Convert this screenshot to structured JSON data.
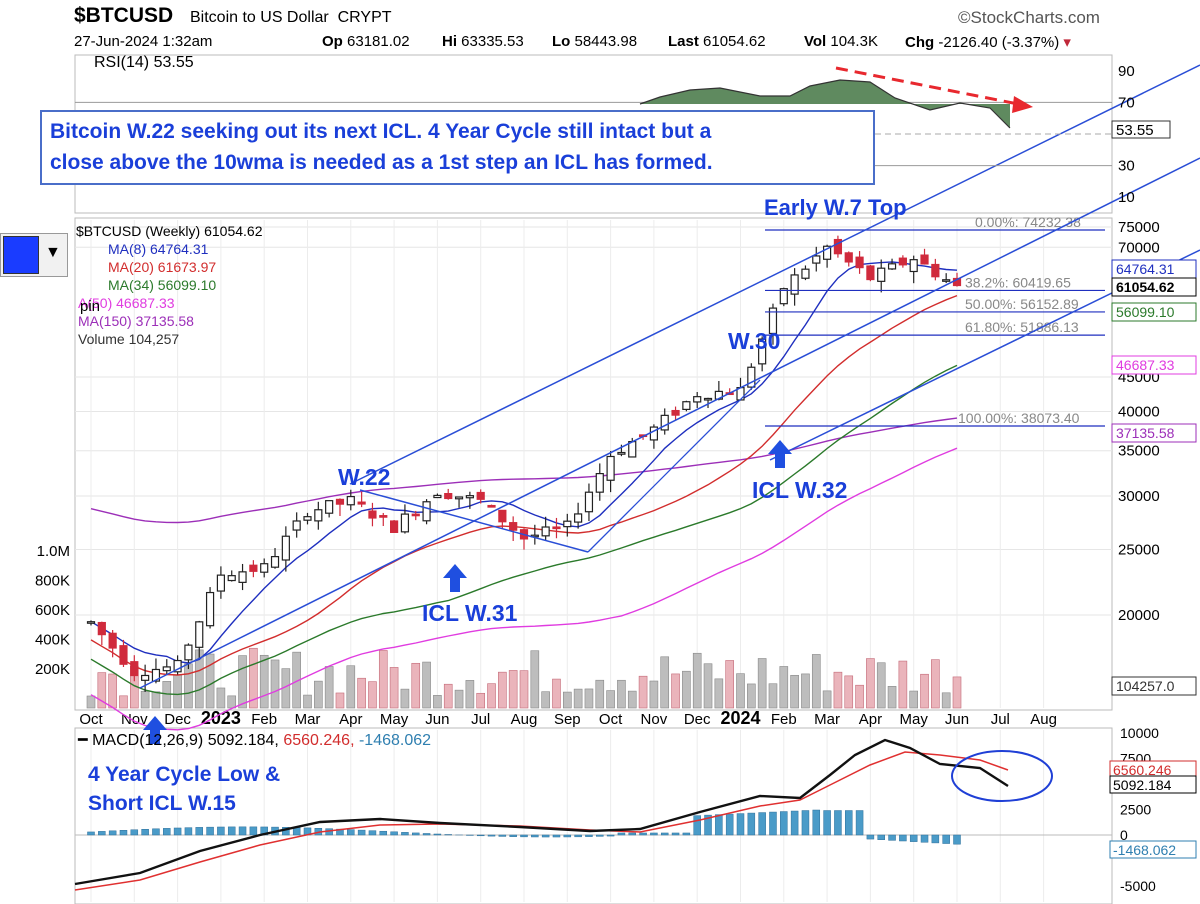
{
  "header": {
    "symbol": "$BTCUSD",
    "name": "Bitcoin to US Dollar",
    "exchange": "CRYPT",
    "brand": "©StockCharts.com",
    "datetime": "27-Jun-2024 1:32am",
    "open_label": "Op",
    "open": "63181.02",
    "high_label": "Hi",
    "high": "63335.53",
    "low_label": "Lo",
    "low": "58443.98",
    "last_label": "Last",
    "last": "61054.62",
    "vol_label": "Vol",
    "vol": "104.3K",
    "chg_label": "Chg",
    "chg": "-2126.40 (-3.37%)"
  },
  "note_box": {
    "line1": "Bitcoin W.22 seeking out its next ICL. 4 Year Cycle still intact but a",
    "line2": "close above the 10wma is needed as a 1st step an ICL has formed."
  },
  "rsi_panel": {
    "label": "RSI(14) 53.55",
    "ticks": [
      "90",
      "70",
      "30",
      "10"
    ],
    "value_tag": "53.55"
  },
  "price_panel": {
    "title": "$BTCUSD (Weekly) 61054.62",
    "legend": [
      {
        "label": "MA(8) 64764.31",
        "color": "#1f2fbf"
      },
      {
        "label": "MA(20) 61673.97",
        "color": "#d22d2d"
      },
      {
        "label": "MA(34) 56099.10",
        "color": "#2b7a2b"
      },
      {
        "label": "A(50) 46687.33",
        "color": "#e03ce0"
      },
      {
        "label": "MA(150) 37135.58",
        "color": "#9c2fb8"
      },
      {
        "label": "Volume 104,257",
        "color": "#333333"
      }
    ],
    "pin_label": "pin",
    "ticks": [
      "75000",
      "70000",
      "45000",
      "40000",
      "35000",
      "30000",
      "25000",
      "20000"
    ],
    "value_tags": [
      {
        "text": "64764.31",
        "color": "#1f2fbf"
      },
      {
        "text": "61054.62",
        "color": "#000000"
      },
      {
        "text": "56099.10",
        "color": "#2b7a2b"
      },
      {
        "text": "46687.33",
        "color": "#e03ce0"
      },
      {
        "text": "37135.58",
        "color": "#9c2fb8"
      },
      {
        "text": "104257.0",
        "color": "#333333"
      }
    ],
    "vol_ticks": [
      "1.0M",
      "800K",
      "600K",
      "400K",
      "200K"
    ],
    "fib_levels": [
      {
        "label": "0.00%: 74232.38"
      },
      {
        "label": "38.2%: 60419.65"
      },
      {
        "label": "50.00%: 56152.89"
      },
      {
        "label": "61.80%: 51886.13"
      },
      {
        "label": "100.00%: 38073.40"
      }
    ],
    "annotations": {
      "early_top": "Early W.7 Top",
      "w30": "W.30",
      "w22": "W.22",
      "icl_w32": "ICL W.32",
      "icl_w31": "ICL W.31"
    }
  },
  "x_axis": {
    "labels": [
      "Oct",
      "Nov",
      "Dec",
      "2023",
      "Feb",
      "Mar",
      "Apr",
      "May",
      "Jun",
      "Jul",
      "Aug",
      "Sep",
      "Oct",
      "Nov",
      "Dec",
      "2024",
      "Feb",
      "Mar",
      "Apr",
      "May",
      "Jun",
      "Jul",
      "Aug"
    ]
  },
  "macd_panel": {
    "label_a": "MACD(12,26,9) 5092.184,",
    "label_b": "6560.246,",
    "label_c": "-1468.062",
    "ticks": [
      "10000",
      "7500",
      "2500",
      "0",
      "-5000"
    ],
    "value_tags": [
      {
        "text": "6560.246",
        "color": "#d22d2d"
      },
      {
        "text": "5092.184",
        "color": "#000000"
      },
      {
        "text": "-1468.062",
        "color": "#2f7fb0"
      }
    ],
    "annotation_line1": "4 Year Cycle Low &",
    "annotation_line2": "Short ICL W.15"
  },
  "colors": {
    "annotation_blue": "#1a3fd9",
    "up_candle": "#222222",
    "down_candle": "#d02a3c",
    "rsi_fill": "#5f8a5f",
    "macd_hist": "#4a9bc8"
  },
  "chart_data": {
    "type": "candlestick",
    "symbol": "$BTCUSD",
    "interval": "Weekly",
    "last": 61054.62,
    "y_scale": "log",
    "close_path": [
      {
        "date": "2022-10",
        "close": 19500
      },
      {
        "date": "2022-11",
        "close": 16500
      },
      {
        "date": "2022-12",
        "close": 16800
      },
      {
        "date": "2023-01",
        "close": 23000
      },
      {
        "date": "2023-02",
        "close": 23500
      },
      {
        "date": "2023-03",
        "close": 28500
      },
      {
        "date": "2023-04",
        "close": 29500
      },
      {
        "date": "2023-05",
        "close": 27000
      },
      {
        "date": "2023-06",
        "close": 30500
      },
      {
        "date": "2023-07",
        "close": 29500
      },
      {
        "date": "2023-08",
        "close": 26000
      },
      {
        "date": "2023-09",
        "close": 27000
      },
      {
        "date": "2023-10",
        "close": 34500
      },
      {
        "date": "2023-11",
        "close": 37700
      },
      {
        "date": "2023-12",
        "close": 42500
      },
      {
        "date": "2024-01",
        "close": 43000
      },
      {
        "date": "2024-02",
        "close": 61000
      },
      {
        "date": "2024-03",
        "close": 70000
      },
      {
        "date": "2024-04",
        "close": 63000
      },
      {
        "date": "2024-05",
        "close": 67500
      },
      {
        "date": "2024-06",
        "close": 61054.62
      }
    ],
    "moving_averages": [
      {
        "name": "MA(8)",
        "value": 64764.31
      },
      {
        "name": "MA(20)",
        "value": 61673.97
      },
      {
        "name": "MA(34)",
        "value": 56099.1
      },
      {
        "name": "MA(50)",
        "value": 46687.33
      },
      {
        "name": "MA(150)",
        "value": 37135.58
      }
    ],
    "fibonacci": [
      {
        "pct": 0.0,
        "price": 74232.38
      },
      {
        "pct": 38.2,
        "price": 60419.65
      },
      {
        "pct": 50.0,
        "price": 56152.89
      },
      {
        "pct": 61.8,
        "price": 51886.13
      },
      {
        "pct": 100.0,
        "price": 38073.4
      }
    ],
    "volume_last": 104257,
    "rsi": {
      "period": 14,
      "last": 53.55,
      "levels": [
        90,
        70,
        30,
        10
      ]
    },
    "macd": {
      "params": "12,26,9",
      "macd": 5092.184,
      "signal": 6560.246,
      "histogram": -1468.062
    },
    "ylim_price": [
      17000,
      78000
    ],
    "ylim_macd": [
      -5000,
      10000
    ]
  }
}
